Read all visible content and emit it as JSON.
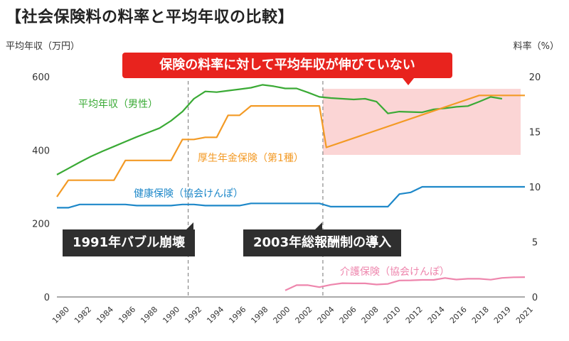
{
  "title": "【社会保険料の料率と平均年収の比較】",
  "chart_data": {
    "type": "line",
    "left_axis": {
      "label": "平均年収（万円）",
      "ylim": [
        0,
        650
      ],
      "ticks": [
        0,
        200,
        400,
        600
      ]
    },
    "right_axis": {
      "label": "料率（%）",
      "ylim": [
        0,
        21.7
      ],
      "ticks": [
        0,
        5,
        10,
        15,
        20
      ]
    },
    "x_ticks": [
      "1980",
      "1982",
      "1984",
      "1986",
      "1988",
      "1990",
      "1992",
      "1994",
      "1996",
      "1998",
      "2000",
      "2002",
      "2004",
      "2006",
      "2008",
      "2010",
      "2012",
      "2014",
      "2016",
      "2018",
      "2019",
      "2021"
    ],
    "callout": "保険の料率に対して平均年収が伸びていない",
    "events": [
      {
        "label": "1991年バブル崩壊",
        "x": 1991.5
      },
      {
        "label": "2003年総報酬制の導入",
        "x": 2003.3
      }
    ],
    "shaded_region": {
      "x": [
        2003.3,
        2021
      ],
      "rate_range": [
        12.9,
        18.9
      ]
    },
    "series": [
      {
        "name": "平均年収（男性）",
        "axis": "left",
        "color": "#3aaa35",
        "points": [
          [
            1980,
            333
          ],
          [
            1981,
            350
          ],
          [
            1982,
            367
          ],
          [
            1983,
            383
          ],
          [
            1984,
            397
          ],
          [
            1985,
            410
          ],
          [
            1986,
            423
          ],
          [
            1987,
            436
          ],
          [
            1988,
            448
          ],
          [
            1989,
            460
          ],
          [
            1990,
            480
          ],
          [
            1991,
            505
          ],
          [
            1992,
            540
          ],
          [
            1993,
            560
          ],
          [
            1994,
            558
          ],
          [
            1995,
            562
          ],
          [
            1996,
            566
          ],
          [
            1997,
            570
          ],
          [
            1998,
            578
          ],
          [
            1999,
            574
          ],
          [
            2000,
            568
          ],
          [
            2001,
            568
          ],
          [
            2002,
            557
          ],
          [
            2003,
            545
          ],
          [
            2004,
            542
          ],
          [
            2005,
            540
          ],
          [
            2006,
            538
          ],
          [
            2007,
            540
          ],
          [
            2008,
            532
          ],
          [
            2009,
            500
          ],
          [
            2010,
            505
          ],
          [
            2011,
            504
          ],
          [
            2012,
            503
          ],
          [
            2013,
            511
          ],
          [
            2014,
            514
          ],
          [
            2015,
            518
          ],
          [
            2016,
            520
          ],
          [
            2017,
            532
          ],
          [
            2018,
            545
          ],
          [
            2019,
            540
          ]
        ]
      },
      {
        "name": "厚生年金保険（第1種）",
        "axis": "right",
        "color": "#f39a25",
        "points": [
          [
            1980,
            9.1
          ],
          [
            1981,
            10.6
          ],
          [
            1982,
            10.6
          ],
          [
            1983,
            10.6
          ],
          [
            1984,
            10.6
          ],
          [
            1985,
            10.6
          ],
          [
            1986,
            12.4
          ],
          [
            1987,
            12.4
          ],
          [
            1988,
            12.4
          ],
          [
            1989,
            12.4
          ],
          [
            1990,
            12.4
          ],
          [
            1991,
            14.3
          ],
          [
            1992,
            14.3
          ],
          [
            1993,
            14.5
          ],
          [
            1994,
            14.5
          ],
          [
            1995,
            16.5
          ],
          [
            1996,
            16.5
          ],
          [
            1997,
            17.35
          ],
          [
            1998,
            17.35
          ],
          [
            1999,
            17.35
          ],
          [
            2000,
            17.35
          ],
          [
            2001,
            17.35
          ],
          [
            2002,
            17.35
          ],
          [
            2003,
            17.35
          ],
          [
            2003.6,
            13.58
          ],
          [
            2017,
            18.3
          ],
          [
            2021,
            18.3
          ]
        ]
      },
      {
        "name": "健康保険（協会けんぽ）",
        "axis": "right",
        "color": "#1e88c9",
        "points": [
          [
            1980,
            8.1
          ],
          [
            1981,
            8.1
          ],
          [
            1982,
            8.4
          ],
          [
            1983,
            8.4
          ],
          [
            1984,
            8.4
          ],
          [
            1985,
            8.4
          ],
          [
            1986,
            8.4
          ],
          [
            1987,
            8.3
          ],
          [
            1988,
            8.3
          ],
          [
            1989,
            8.3
          ],
          [
            1990,
            8.3
          ],
          [
            1991,
            8.4
          ],
          [
            1992,
            8.4
          ],
          [
            1993,
            8.3
          ],
          [
            1994,
            8.3
          ],
          [
            1995,
            8.3
          ],
          [
            1996,
            8.3
          ],
          [
            1997,
            8.5
          ],
          [
            1998,
            8.5
          ],
          [
            1999,
            8.5
          ],
          [
            2000,
            8.5
          ],
          [
            2001,
            8.5
          ],
          [
            2002,
            8.5
          ],
          [
            2003,
            8.5
          ],
          [
            2004,
            8.2
          ],
          [
            2005,
            8.2
          ],
          [
            2006,
            8.2
          ],
          [
            2007,
            8.2
          ],
          [
            2008,
            8.2
          ],
          [
            2009,
            8.2
          ],
          [
            2010,
            9.34
          ],
          [
            2011,
            9.5
          ],
          [
            2012,
            10
          ],
          [
            2013,
            10
          ],
          [
            2014,
            10
          ],
          [
            2015,
            10
          ],
          [
            2016,
            10
          ],
          [
            2017,
            10
          ],
          [
            2018,
            10
          ],
          [
            2019,
            10
          ],
          [
            2020,
            10
          ],
          [
            2021,
            10
          ]
        ]
      },
      {
        "name": "介護保険（協会けんぽ）",
        "axis": "right",
        "color": "#ee86ad",
        "points": [
          [
            2000,
            0.6
          ],
          [
            2001,
            1.07
          ],
          [
            2002,
            1.07
          ],
          [
            2003,
            0.89
          ],
          [
            2004,
            1.11
          ],
          [
            2005,
            1.25
          ],
          [
            2006,
            1.23
          ],
          [
            2007,
            1.23
          ],
          [
            2008,
            1.13
          ],
          [
            2009,
            1.19
          ],
          [
            2010,
            1.5
          ],
          [
            2011,
            1.51
          ],
          [
            2012,
            1.55
          ],
          [
            2013,
            1.55
          ],
          [
            2014,
            1.72
          ],
          [
            2015,
            1.58
          ],
          [
            2016,
            1.65
          ],
          [
            2017,
            1.65
          ],
          [
            2018,
            1.57
          ],
          [
            2019,
            1.73
          ],
          [
            2020,
            1.79
          ],
          [
            2021,
            1.8
          ]
        ]
      }
    ]
  }
}
